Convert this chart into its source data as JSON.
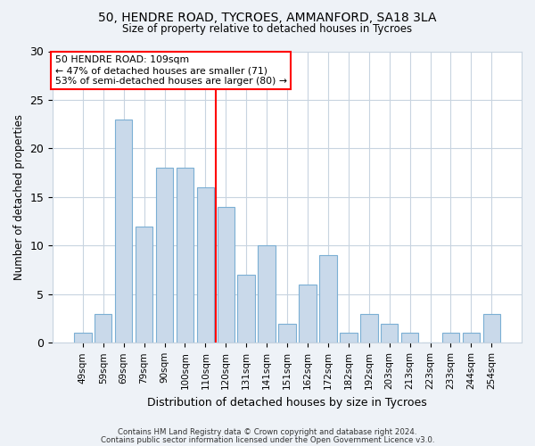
{
  "title1": "50, HENDRE ROAD, TYCROES, AMMANFORD, SA18 3LA",
  "title2": "Size of property relative to detached houses in Tycroes",
  "xlabel": "Distribution of detached houses by size in Tycroes",
  "ylabel": "Number of detached properties",
  "bar_labels": [
    "49sqm",
    "59sqm",
    "69sqm",
    "79sqm",
    "90sqm",
    "100sqm",
    "110sqm",
    "120sqm",
    "131sqm",
    "141sqm",
    "151sqm",
    "162sqm",
    "172sqm",
    "182sqm",
    "192sqm",
    "203sqm",
    "213sqm",
    "223sqm",
    "233sqm",
    "244sqm",
    "254sqm"
  ],
  "bar_values": [
    1,
    3,
    23,
    12,
    18,
    18,
    16,
    14,
    7,
    10,
    2,
    6,
    9,
    1,
    3,
    2,
    1,
    0,
    1,
    1,
    3
  ],
  "bar_color": "#c9d9ea",
  "bar_edgecolor": "#7bafd4",
  "property_line_x": 6.5,
  "annotation_text": "50 HENDRE ROAD: 109sqm\n← 47% of detached houses are smaller (71)\n53% of semi-detached houses are larger (80) →",
  "annotation_box_color": "white",
  "annotation_box_edgecolor": "red",
  "vline_color": "red",
  "ylim": [
    0,
    30
  ],
  "yticks": [
    0,
    5,
    10,
    15,
    20,
    25,
    30
  ],
  "footer1": "Contains HM Land Registry data © Crown copyright and database right 2024.",
  "footer2": "Contains public sector information licensed under the Open Government Licence v3.0.",
  "background_color": "#eef2f7",
  "plot_background": "white",
  "grid_color": "#c8d4e0"
}
